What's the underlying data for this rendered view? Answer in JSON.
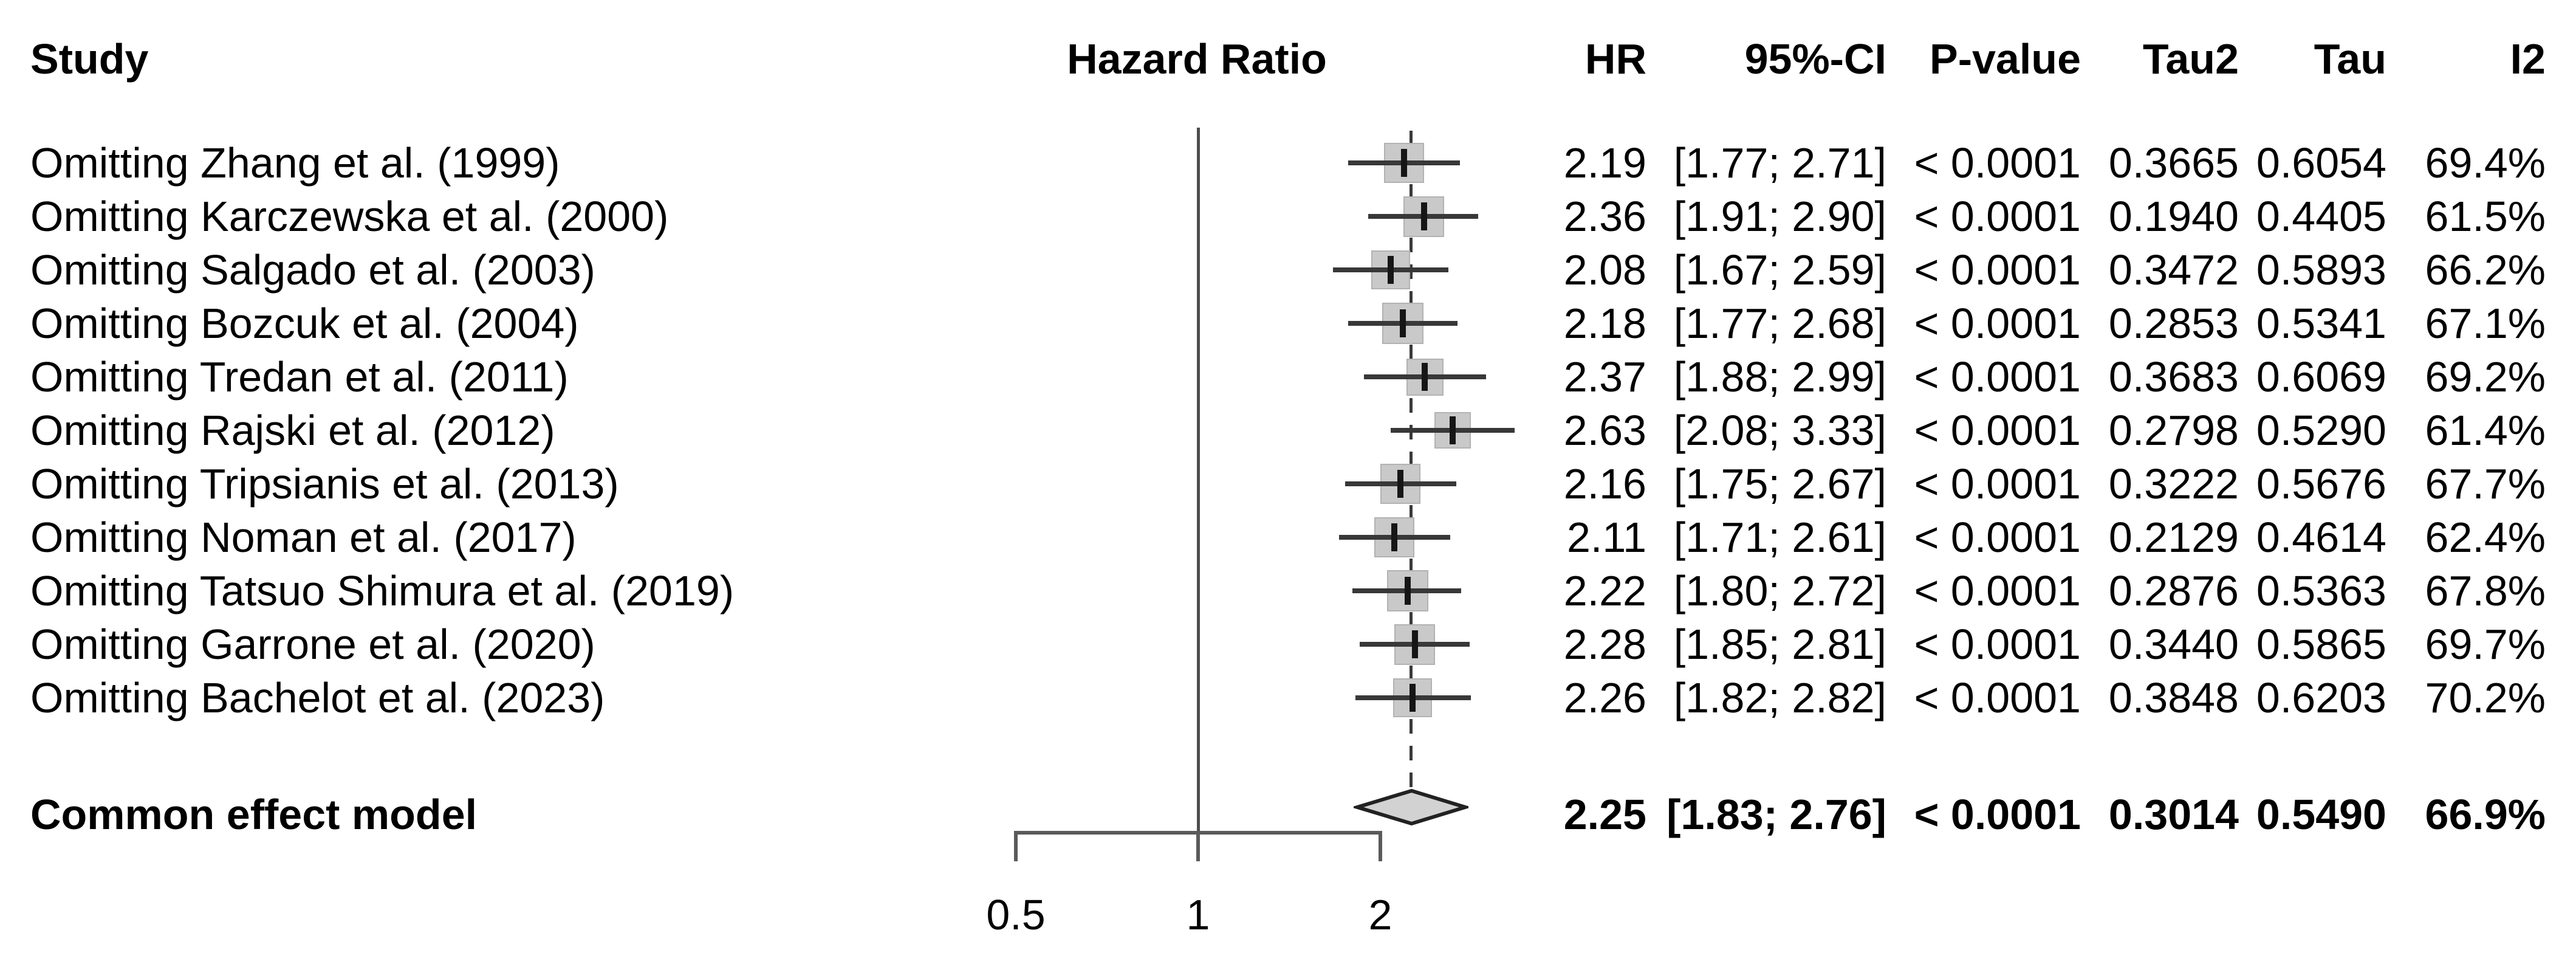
{
  "header": {
    "study": "Study",
    "plot": "Hazard Ratio",
    "hr": "HR",
    "ci": "95%-CI",
    "pvalue": "P-value",
    "tau2": "Tau2",
    "tau": "Tau",
    "i2": "I2"
  },
  "colors": {
    "square": "#c9c9c9",
    "whisker": "#383838",
    "point_tick": "#161616",
    "ref_line": "#4d4d4d",
    "dashed_line": "#3a3a3a",
    "axis": "#5a5a5a",
    "diamond_fill": "#d2d2d2",
    "diamond_stroke": "#222222",
    "text": "#000000"
  },
  "chart_data": {
    "type": "forest",
    "x_scale": "log",
    "ref_line_value": 1,
    "pooled_line_value": 2.25,
    "axis_ticks": [
      {
        "value": 0.5,
        "label": "0.5"
      },
      {
        "value": 1,
        "label": "1"
      },
      {
        "value": 2,
        "label": "2"
      }
    ],
    "studies": [
      {
        "label": "Omitting Zhang et al. (1999)",
        "hr": 2.19,
        "ci_low": 1.77,
        "ci_high": 2.71,
        "hr_text": "2.19",
        "ci_text": "[1.77; 2.71]",
        "p_text": "< 0.0001",
        "tau2_text": "0.3665",
        "tau_text": "0.6054",
        "i2_text": "69.4%"
      },
      {
        "label": "Omitting Karczewska et al. (2000)",
        "hr": 2.36,
        "ci_low": 1.91,
        "ci_high": 2.9,
        "hr_text": "2.36",
        "ci_text": "[1.91; 2.90]",
        "p_text": "< 0.0001",
        "tau2_text": "0.1940",
        "tau_text": "0.4405",
        "i2_text": "61.5%"
      },
      {
        "label": "Omitting Salgado et al. (2003)",
        "hr": 2.08,
        "ci_low": 1.67,
        "ci_high": 2.59,
        "hr_text": "2.08",
        "ci_text": "[1.67; 2.59]",
        "p_text": "< 0.0001",
        "tau2_text": "0.3472",
        "tau_text": "0.5893",
        "i2_text": "66.2%"
      },
      {
        "label": "Omitting Bozcuk et al. (2004)",
        "hr": 2.18,
        "ci_low": 1.77,
        "ci_high": 2.68,
        "hr_text": "2.18",
        "ci_text": "[1.77; 2.68]",
        "p_text": "< 0.0001",
        "tau2_text": "0.2853",
        "tau_text": "0.5341",
        "i2_text": "67.1%"
      },
      {
        "label": "Omitting Tredan et al. (2011)",
        "hr": 2.37,
        "ci_low": 1.88,
        "ci_high": 2.99,
        "hr_text": "2.37",
        "ci_text": "[1.88; 2.99]",
        "p_text": "< 0.0001",
        "tau2_text": "0.3683",
        "tau_text": "0.6069",
        "i2_text": "69.2%"
      },
      {
        "label": "Omitting Rajski et al. (2012)",
        "hr": 2.63,
        "ci_low": 2.08,
        "ci_high": 3.33,
        "hr_text": "2.63",
        "ci_text": "[2.08; 3.33]",
        "p_text": "< 0.0001",
        "tau2_text": "0.2798",
        "tau_text": "0.5290",
        "i2_text": "61.4%"
      },
      {
        "label": "Omitting Tripsianis et al. (2013)",
        "hr": 2.16,
        "ci_low": 1.75,
        "ci_high": 2.67,
        "hr_text": "2.16",
        "ci_text": "[1.75; 2.67]",
        "p_text": "< 0.0001",
        "tau2_text": "0.3222",
        "tau_text": "0.5676",
        "i2_text": "67.7%"
      },
      {
        "label": "Omitting Noman et al. (2017)",
        "hr": 2.11,
        "ci_low": 1.71,
        "ci_high": 2.61,
        "hr_text": "2.11",
        "ci_text": "[1.71; 2.61]",
        "p_text": "< 0.0001",
        "tau2_text": "0.2129",
        "tau_text": "0.4614",
        "i2_text": "62.4%"
      },
      {
        "label": "Omitting Tatsuo Shimura et al. (2019)",
        "hr": 2.22,
        "ci_low": 1.8,
        "ci_high": 2.72,
        "hr_text": "2.22",
        "ci_text": "[1.80; 2.72]",
        "p_text": "< 0.0001",
        "tau2_text": "0.2876",
        "tau_text": "0.5363",
        "i2_text": "67.8%"
      },
      {
        "label": "Omitting Garrone et al. (2020)",
        "hr": 2.28,
        "ci_low": 1.85,
        "ci_high": 2.81,
        "hr_text": "2.28",
        "ci_text": "[1.85; 2.81]",
        "p_text": "< 0.0001",
        "tau2_text": "0.3440",
        "tau_text": "0.5865",
        "i2_text": "69.7%"
      },
      {
        "label": "Omitting Bachelot et al. (2023)",
        "hr": 2.26,
        "ci_low": 1.82,
        "ci_high": 2.82,
        "hr_text": "2.26",
        "ci_text": "[1.82; 2.82]",
        "p_text": "< 0.0001",
        "tau2_text": "0.3848",
        "tau_text": "0.6203",
        "i2_text": "70.2%"
      }
    ],
    "summary": {
      "label": "Common effect model",
      "hr": 2.25,
      "ci_low": 1.83,
      "ci_high": 2.76,
      "hr_text": "2.25",
      "ci_text": "[1.83; 2.76]",
      "p_text": "< 0.0001",
      "tau2_text": "0.3014",
      "tau_text": "0.5490",
      "i2_text": "66.9%"
    }
  }
}
